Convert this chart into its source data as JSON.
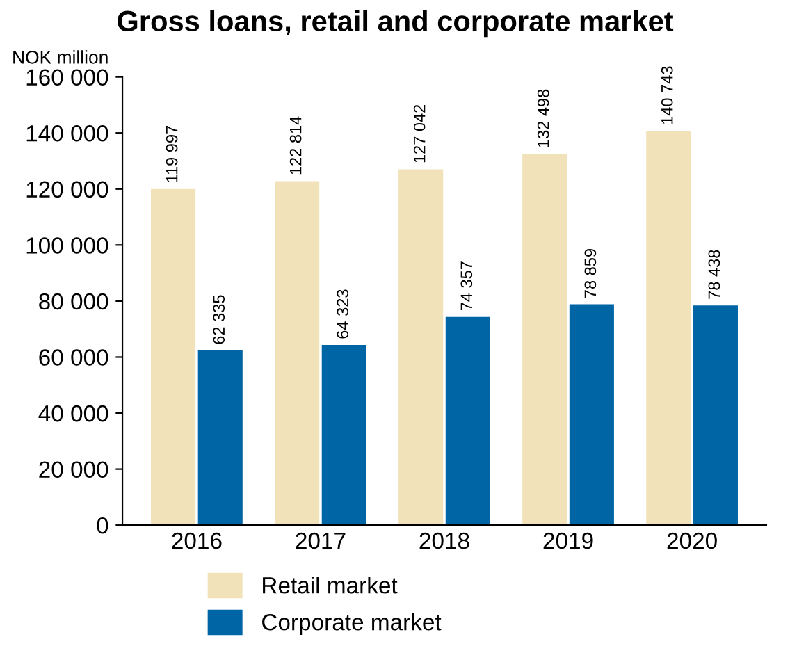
{
  "chart_data": {
    "type": "bar",
    "title": "Gross loans, retail and corporate market",
    "ylabel": "NOK million",
    "categories": [
      "2016",
      "2017",
      "2018",
      "2019",
      "2020"
    ],
    "series": [
      {
        "name": "Retail market",
        "color": "#f2e2b9",
        "values": [
          119997,
          122814,
          127042,
          132498,
          140743
        ],
        "value_labels": [
          "119 997",
          "122 814",
          "127 042",
          "132 498",
          "140 743"
        ]
      },
      {
        "name": "Corporate market",
        "color": "#0065a4",
        "values": [
          62335,
          64323,
          74357,
          78859,
          78438
        ],
        "value_labels": [
          "62 335",
          "64 323",
          "74 357",
          "78 859",
          "78 438"
        ]
      }
    ],
    "ylim": [
      0,
      160000
    ],
    "yticks": [
      0,
      {
        "value": 20000,
        "label": "20 000"
      },
      {
        "value": 40000,
        "label": "40 000"
      },
      {
        "value": 60000,
        "label": "60 000"
      },
      {
        "value": 80000,
        "label": "80 000"
      },
      {
        "value": 100000,
        "label": "100 000"
      },
      {
        "value": 120000,
        "label": "120 000"
      },
      {
        "value": 140000,
        "label": "140 000"
      },
      {
        "value": 160000,
        "label": "160 000"
      }
    ],
    "legend": "bottom"
  }
}
